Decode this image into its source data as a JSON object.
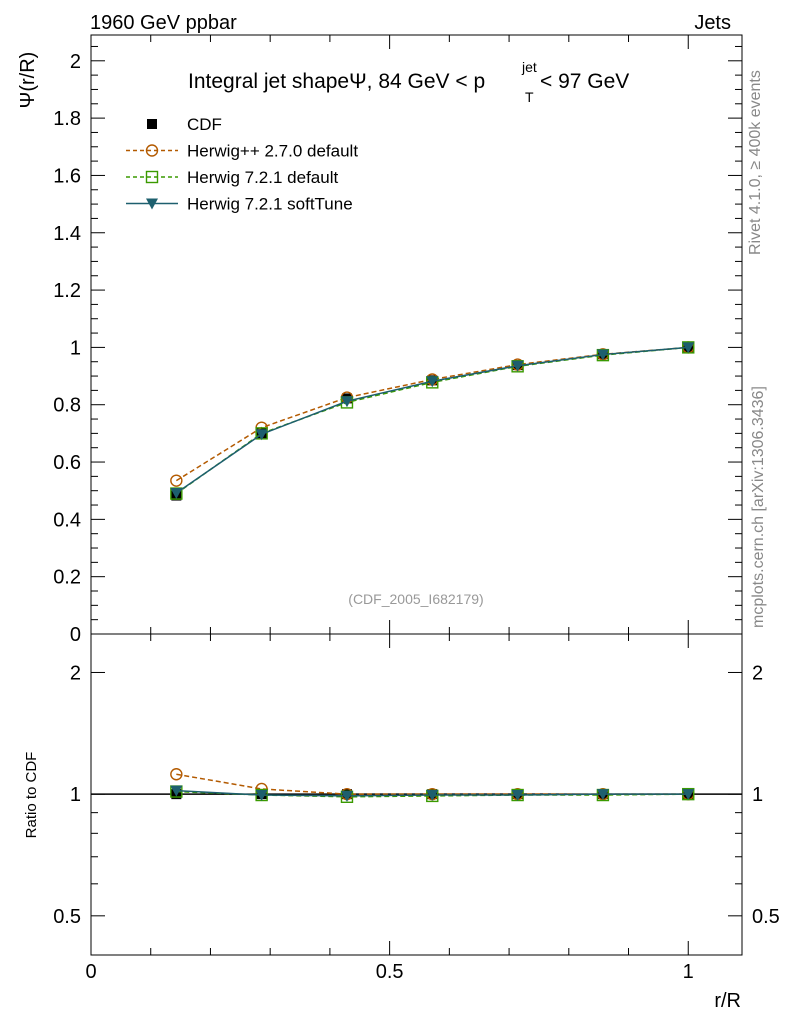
{
  "header": {
    "left": "1960 GeV ppbar",
    "right": "Jets"
  },
  "side_labels": {
    "rivet": "Rivet 4.1.0, ≥ 400k events",
    "mcplots": "mcplots.cern.ch [arXiv:1306.3436]"
  },
  "chart_data": {
    "type": "line",
    "title_pre": "Integral jet shapeΨ, 84 GeV < p",
    "title_sup": "jet",
    "title_sub": "T",
    "title_post": " < 97 GeV",
    "analysis_tag": "(CDF_2005_I682179)",
    "xlabel": "r/R",
    "ylabel": "Ψ(r/R)",
    "ratio_ylabel": "Ratio to CDF",
    "xlim": [
      0,
      1.09
    ],
    "ylim": [
      0,
      2.09
    ],
    "ratio_ylim": [
      0.4,
      2.49
    ],
    "ratio_scale": "log",
    "x_ticks": [
      0,
      0.5,
      1
    ],
    "x_tick_labels": [
      "0",
      "0.5",
      "1"
    ],
    "y_ticks": [
      0,
      0.2,
      0.4,
      0.6,
      0.8,
      1,
      1.2,
      1.4,
      1.6,
      1.8,
      2
    ],
    "y_tick_labels": [
      "0",
      "0.2",
      "0.4",
      "0.6",
      "0.8",
      "1",
      "1.2",
      "1.4",
      "1.6",
      "1.8",
      "2"
    ],
    "ratio_ticks": [
      0.5,
      1,
      2
    ],
    "ratio_tick_labels": [
      "0.5",
      "1",
      "2"
    ],
    "legend_position": "top-left",
    "x": [
      0.1429,
      0.2857,
      0.4286,
      0.5714,
      0.7143,
      0.8571,
      1.0
    ],
    "series": [
      {
        "name": "CDF",
        "color": "#000000",
        "marker": "filled-square",
        "line": "none",
        "values": [
          0.483,
          0.7,
          0.822,
          0.885,
          0.938,
          0.976,
          1.0
        ],
        "ratio": [
          1,
          1,
          1,
          1,
          1,
          1,
          1
        ]
      },
      {
        "name": "Herwig++ 2.7.0 default",
        "color": "#b35a00",
        "marker": "open-circle",
        "line": "dashed",
        "values": [
          0.535,
          0.72,
          0.825,
          0.888,
          0.94,
          0.976,
          1.0
        ],
        "ratio": [
          1.12,
          1.03,
          1.0,
          1.0,
          1.0,
          1.0,
          1.0
        ]
      },
      {
        "name": "Herwig 7.2.1 default",
        "color": "#3a9a00",
        "marker": "open-square",
        "line": "dashed",
        "values": [
          0.49,
          0.7,
          0.808,
          0.878,
          0.934,
          0.973,
          1.0
        ],
        "ratio": [
          1.015,
          0.995,
          0.985,
          0.99,
          0.995,
          0.995,
          1.0
        ]
      },
      {
        "name": "Herwig 7.2.1 softTune",
        "color": "#1d5f6e",
        "marker": "filled-triangle-down",
        "line": "solid",
        "values": [
          0.492,
          0.697,
          0.812,
          0.882,
          0.936,
          0.975,
          1.0
        ],
        "ratio": [
          1.02,
          0.995,
          0.99,
          0.995,
          0.995,
          1.0,
          1.0
        ]
      }
    ]
  }
}
